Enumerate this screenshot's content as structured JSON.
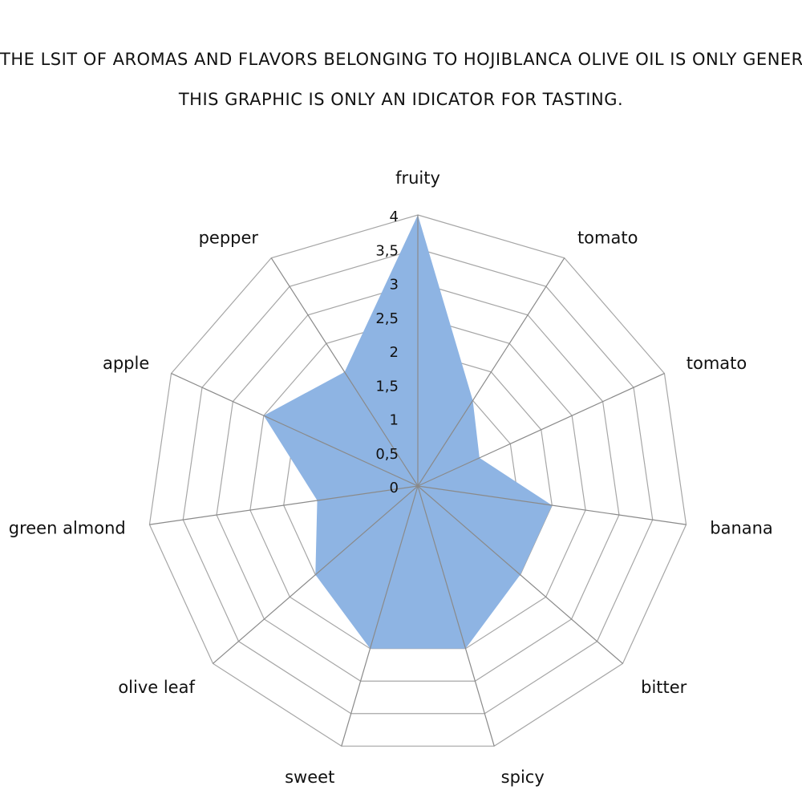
{
  "header": {
    "line1": "THE LSIT OF AROMAS AND FLAVORS BELONGING TO HOJIBLANCA OLIVE OIL IS ONLY GENERAL.",
    "line2": "THIS GRAPHIC IS ONLY AN IDICATOR FOR TASTING."
  },
  "chart_data": {
    "type": "radar",
    "categories": [
      "fruity",
      "tomato",
      "tomato",
      "banana",
      "bitter",
      "spicy",
      "sweet",
      "olive leaf",
      "green almond",
      "apple",
      "pepper"
    ],
    "values": [
      4,
      1.5,
      1,
      2,
      2,
      2.5,
      2.5,
      2,
      1.5,
      2.5,
      2
    ],
    "rlim": [
      0,
      4
    ],
    "ticks": [
      "0",
      "0,5",
      "1",
      "1,5",
      "2",
      "2,5",
      "3",
      "3,5",
      "4"
    ],
    "grid": true,
    "legend": "none",
    "fill_color": "#8EB4E3",
    "grid_color": "#a6a6a6"
  }
}
